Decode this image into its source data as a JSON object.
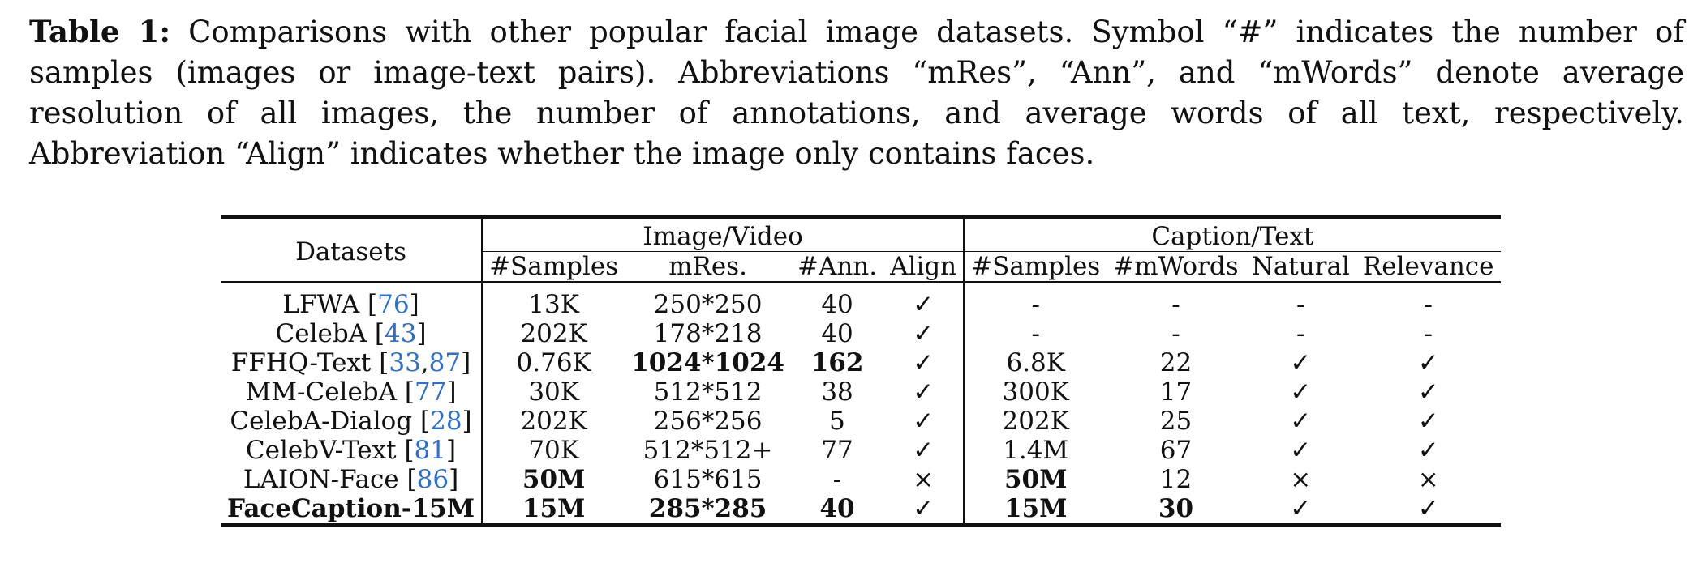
{
  "caption": {
    "label": "Table 1:",
    "text": "Comparisons with other popular facial image datasets. Symbol “#” indicates the number of samples (images or image-text pairs). Abbreviations “mRes”, “Ann”, and “mWords” denote average resolution of all images, the number of annotations, and average words of all text, respectively. Abbreviation “Align” indicates whether the image only contains faces."
  },
  "table": {
    "col_datasets": "Datasets",
    "group_image": "Image/Video",
    "group_caption": "Caption/Text",
    "headers": [
      "#Samples",
      "mRes.",
      "#Ann.",
      "Align",
      "#Samples",
      "#mWords",
      "Natural",
      "Relevance"
    ],
    "rows": [
      {
        "name": "LFWA",
        "refs": [
          "76"
        ],
        "cells": [
          "13K",
          "250*250",
          "40",
          "✓",
          "-",
          "-",
          "-",
          "-"
        ]
      },
      {
        "name": "CelebA",
        "refs": [
          "43"
        ],
        "cells": [
          "202K",
          "178*218",
          "40",
          "✓",
          "-",
          "-",
          "-",
          "-"
        ]
      },
      {
        "name": "FFHQ-Text",
        "refs": [
          "33",
          "87"
        ],
        "cells": [
          "0.76K",
          "1024*1024",
          "162",
          "✓",
          "6.8K",
          "22",
          "✓",
          "✓"
        ]
      },
      {
        "name": "MM-CelebA",
        "refs": [
          "77"
        ],
        "cells": [
          "30K",
          "512*512",
          "38",
          "✓",
          "300K",
          "17",
          "✓",
          "✓"
        ]
      },
      {
        "name": "CelebA-Dialog",
        "refs": [
          "28"
        ],
        "cells": [
          "202K",
          "256*256",
          "5",
          "✓",
          "202K",
          "25",
          "✓",
          "✓"
        ]
      },
      {
        "name": "CelebV-Text",
        "refs": [
          "81"
        ],
        "cells": [
          "70K",
          "512*512+",
          "77",
          "✓",
          "1.4M",
          "67",
          "✓",
          "✓"
        ]
      },
      {
        "name": "LAION-Face",
        "refs": [
          "86"
        ],
        "cells": [
          "50M",
          "615*615",
          "-",
          "×",
          "50M",
          "12",
          "×",
          "×"
        ]
      },
      {
        "name": "FaceCaption-15M",
        "refs": [],
        "cells": [
          "15M",
          "285*285",
          "40",
          "✓",
          "15M",
          "30",
          "✓",
          "✓"
        ]
      }
    ]
  }
}
